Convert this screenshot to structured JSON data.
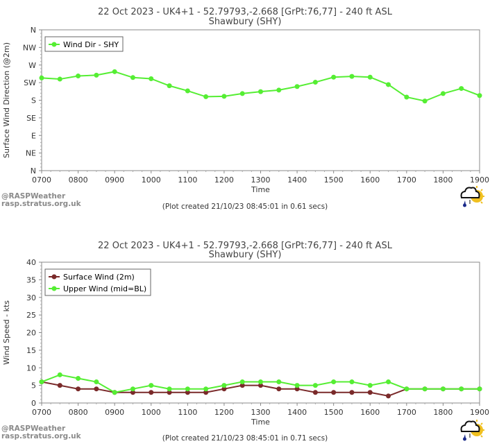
{
  "charts": [
    {
      "title": "22 Oct 2023 - UK4+1 - 52.79793,-2.668 [GrPt:76,77]  - 240 ft ASL",
      "subtitle": "Shawbury (SHY)",
      "footer": "(Plot created 21/10/23 08:45:01 in 0.61 secs)",
      "credit": [
        "@RASPWeather",
        "rasp.stratus.org.uk"
      ]
    },
    {
      "title": "22 Oct 2023 - UK4+1 - 52.79793,-2.668 [GrPt:76,77]  - 240 ft ASL",
      "subtitle": "Shawbury (SHY)",
      "footer": "(Plot created 21/10/23 08:45:01 in 0.71 secs)",
      "credit": [
        "@RASPWeather",
        "rasp.stratus.org.uk"
      ]
    }
  ],
  "chart_data": [
    {
      "type": "line",
      "title": "22 Oct 2023 - UK4+1 - 52.79793,-2.668 [GrPt:76,77]  - 240 ft ASL",
      "subtitle": "Shawbury (SHY)",
      "xlabel": "Time",
      "ylabel": "Surface Wind Direction (@2m)",
      "x_ticks": [
        "0700",
        "0800",
        "0900",
        "1000",
        "1100",
        "1200",
        "1300",
        "1400",
        "1500",
        "1600",
        "1700",
        "1800",
        "1900"
      ],
      "x": [
        700,
        730,
        800,
        830,
        900,
        930,
        1000,
        1030,
        1100,
        1130,
        1200,
        1230,
        1300,
        1330,
        1400,
        1430,
        1500,
        1530,
        1600,
        1630,
        1700,
        1730,
        1800,
        1830,
        1900
      ],
      "y_categories": [
        "N",
        "NE",
        "E",
        "SE",
        "S",
        "SW",
        "W",
        "NW",
        "N"
      ],
      "ylim": [
        0,
        360
      ],
      "legend_position": "top-left",
      "series": [
        {
          "name": "Wind Dir - SHY",
          "color": "#55ee33",
          "values": [
            237,
            234,
            242,
            244,
            253,
            238,
            235,
            217,
            204,
            189,
            190,
            197,
            202,
            206,
            215,
            226,
            239,
            241,
            239,
            220,
            188,
            178,
            197,
            210,
            192
          ]
        }
      ]
    },
    {
      "type": "line",
      "title": "22 Oct 2023 - UK4+1 - 52.79793,-2.668 [GrPt:76,77]  - 240 ft ASL",
      "subtitle": "Shawbury (SHY)",
      "xlabel": "Time",
      "ylabel": "Wind Speed - kts",
      "x_ticks": [
        "0700",
        "0800",
        "0900",
        "1000",
        "1100",
        "1200",
        "1300",
        "1400",
        "1500",
        "1600",
        "1700",
        "1800",
        "1900"
      ],
      "x": [
        700,
        730,
        800,
        830,
        900,
        930,
        1000,
        1030,
        1100,
        1130,
        1200,
        1230,
        1300,
        1330,
        1400,
        1430,
        1500,
        1530,
        1600,
        1630,
        1700,
        1730,
        1800,
        1830,
        1900
      ],
      "y_ticks": [
        0,
        5,
        10,
        15,
        20,
        25,
        30,
        35,
        40
      ],
      "ylim": [
        0,
        40
      ],
      "legend_position": "top-left",
      "series": [
        {
          "name": "Surface Wind (2m)",
          "color": "#7a2a2a",
          "values": [
            6,
            5,
            4,
            4,
            3,
            3,
            3,
            3,
            3,
            3,
            4,
            5,
            5,
            4,
            4,
            3,
            3,
            3,
            3,
            2,
            4,
            4,
            4,
            4,
            4
          ]
        },
        {
          "name": "Upper Wind (mid=BL)",
          "color": "#55ee33",
          "values": [
            6,
            8,
            7,
            6,
            3,
            4,
            5,
            4,
            4,
            4,
            5,
            6,
            6,
            6,
            5,
            5,
            6,
            6,
            5,
            6,
            4,
            4,
            4,
            4,
            4
          ]
        }
      ]
    }
  ]
}
